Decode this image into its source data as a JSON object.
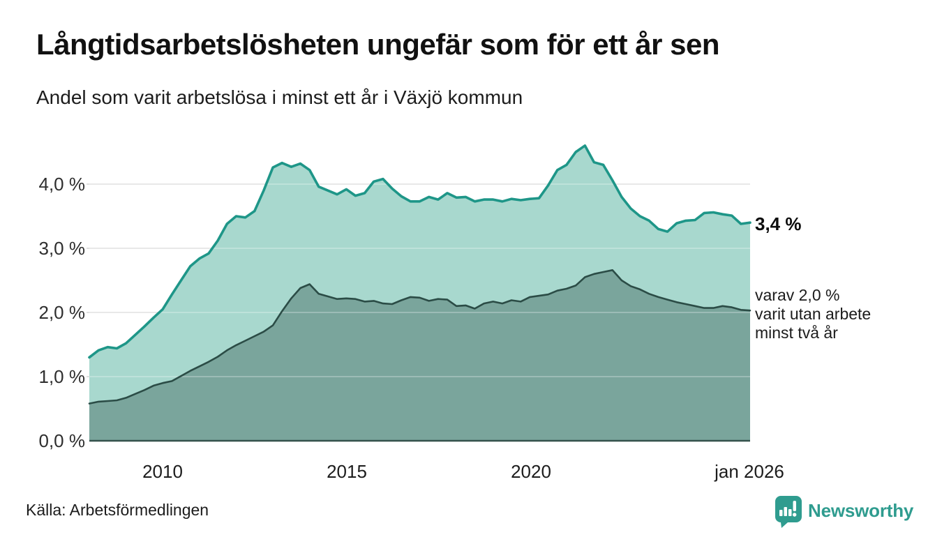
{
  "header": {
    "title": "Långtidsarbetslösheten ungefär som för ett år sen",
    "subtitle": "Andel som varit arbetslösa i minst ett år i Växjö kommun"
  },
  "chart_data": {
    "type": "area",
    "title": "Långtidsarbetslösheten ungefär som för ett år sen",
    "subtitle": "Andel som varit arbetslösa i minst ett år i Växjö kommun",
    "x_unit": "decimal_year_monthly_series_shown_quarterly",
    "xlim": [
      2008,
      2026
    ],
    "ylim": [
      0,
      4.75
    ],
    "grid": "horizontal",
    "legend": "none",
    "y_ticks": [
      0,
      1,
      2,
      3,
      4
    ],
    "y_tick_labels": [
      "0,0 %",
      "1,0 %",
      "2,0 %",
      "3,0 %",
      "4,0 %"
    ],
    "x_ticks": [
      2010,
      2015,
      2020,
      2026
    ],
    "x_tick_labels": [
      "2010",
      "2015",
      "2020",
      "jan 2026"
    ],
    "x": [
      2008,
      2008.25,
      2008.5,
      2008.75,
      2009,
      2009.25,
      2009.5,
      2009.75,
      2010,
      2010.25,
      2010.5,
      2010.75,
      2011,
      2011.25,
      2011.5,
      2011.75,
      2012,
      2012.25,
      2012.5,
      2012.75,
      2013,
      2013.25,
      2013.5,
      2013.75,
      2014,
      2014.25,
      2014.5,
      2014.75,
      2015,
      2015.25,
      2015.5,
      2015.75,
      2016,
      2016.25,
      2016.5,
      2016.75,
      2017,
      2017.25,
      2017.5,
      2017.75,
      2018,
      2018.25,
      2018.5,
      2018.75,
      2019,
      2019.25,
      2019.5,
      2019.75,
      2020,
      2020.25,
      2020.5,
      2020.75,
      2021,
      2021.25,
      2021.5,
      2021.75,
      2022,
      2022.25,
      2022.5,
      2022.75,
      2023,
      2023.25,
      2023.5,
      2023.75,
      2024,
      2024.25,
      2024.5,
      2024.75,
      2025,
      2025.25,
      2025.5,
      2025.75,
      2026
    ],
    "series": [
      {
        "name": "Andel som varit arbetslösa i minst ett år",
        "stroke": "#1e9688",
        "fill": "#a8d8ce",
        "end_label": "3,4 %",
        "values": [
          1.3,
          1.41,
          1.46,
          1.44,
          1.52,
          1.65,
          1.78,
          1.92,
          2.05,
          2.28,
          2.5,
          2.72,
          2.84,
          2.92,
          3.12,
          3.38,
          3.5,
          3.48,
          3.58,
          3.9,
          4.26,
          4.33,
          4.27,
          4.32,
          4.22,
          3.96,
          3.9,
          3.84,
          3.92,
          3.82,
          3.86,
          4.04,
          4.08,
          3.93,
          3.81,
          3.73,
          3.73,
          3.8,
          3.76,
          3.86,
          3.79,
          3.8,
          3.73,
          3.76,
          3.76,
          3.73,
          3.77,
          3.75,
          3.77,
          3.78,
          3.98,
          4.22,
          4.3,
          4.5,
          4.6,
          4.34,
          4.3,
          4.06,
          3.8,
          3.62,
          3.5,
          3.43,
          3.3,
          3.26,
          3.39,
          3.43,
          3.44,
          3.55,
          3.56,
          3.53,
          3.51,
          3.38,
          3.4
        ]
      },
      {
        "name": "varav varit utan arbete minst två år",
        "stroke": "#2b4c46",
        "fill": "#7aa59c",
        "end_label": "2,0 %",
        "values": [
          0.58,
          0.61,
          0.62,
          0.63,
          0.67,
          0.73,
          0.79,
          0.86,
          0.9,
          0.93,
          1.01,
          1.09,
          1.16,
          1.23,
          1.31,
          1.41,
          1.49,
          1.56,
          1.63,
          1.7,
          1.8,
          2.02,
          2.22,
          2.38,
          2.44,
          2.29,
          2.25,
          2.21,
          2.22,
          2.21,
          2.17,
          2.18,
          2.14,
          2.13,
          2.19,
          2.24,
          2.23,
          2.18,
          2.21,
          2.2,
          2.1,
          2.11,
          2.06,
          2.14,
          2.17,
          2.14,
          2.19,
          2.17,
          2.24,
          2.26,
          2.28,
          2.34,
          2.37,
          2.42,
          2.55,
          2.6,
          2.63,
          2.66,
          2.5,
          2.41,
          2.36,
          2.29,
          2.24,
          2.2,
          2.16,
          2.13,
          2.1,
          2.07,
          2.07,
          2.1,
          2.08,
          2.04,
          2.03
        ]
      }
    ],
    "annotations": {
      "end_value_primary": "3,4 %",
      "end_note_lines": [
        "varav 2,0 %",
        "varit utan arbete",
        "minst två år"
      ]
    }
  },
  "footer": {
    "source": "Källa: Arbetsförmedlingen",
    "brand": "Newsworthy"
  },
  "colors": {
    "accent_teal": "#1e9688",
    "fill_light": "#a8d8ce",
    "fill_dark": "#7aa59c",
    "stroke_dark": "#2b4c46",
    "gridline": "#d6d6d6",
    "baseline": "#35524c",
    "brand_teal": "#2f9c8f",
    "text": "#1c1c1c"
  }
}
